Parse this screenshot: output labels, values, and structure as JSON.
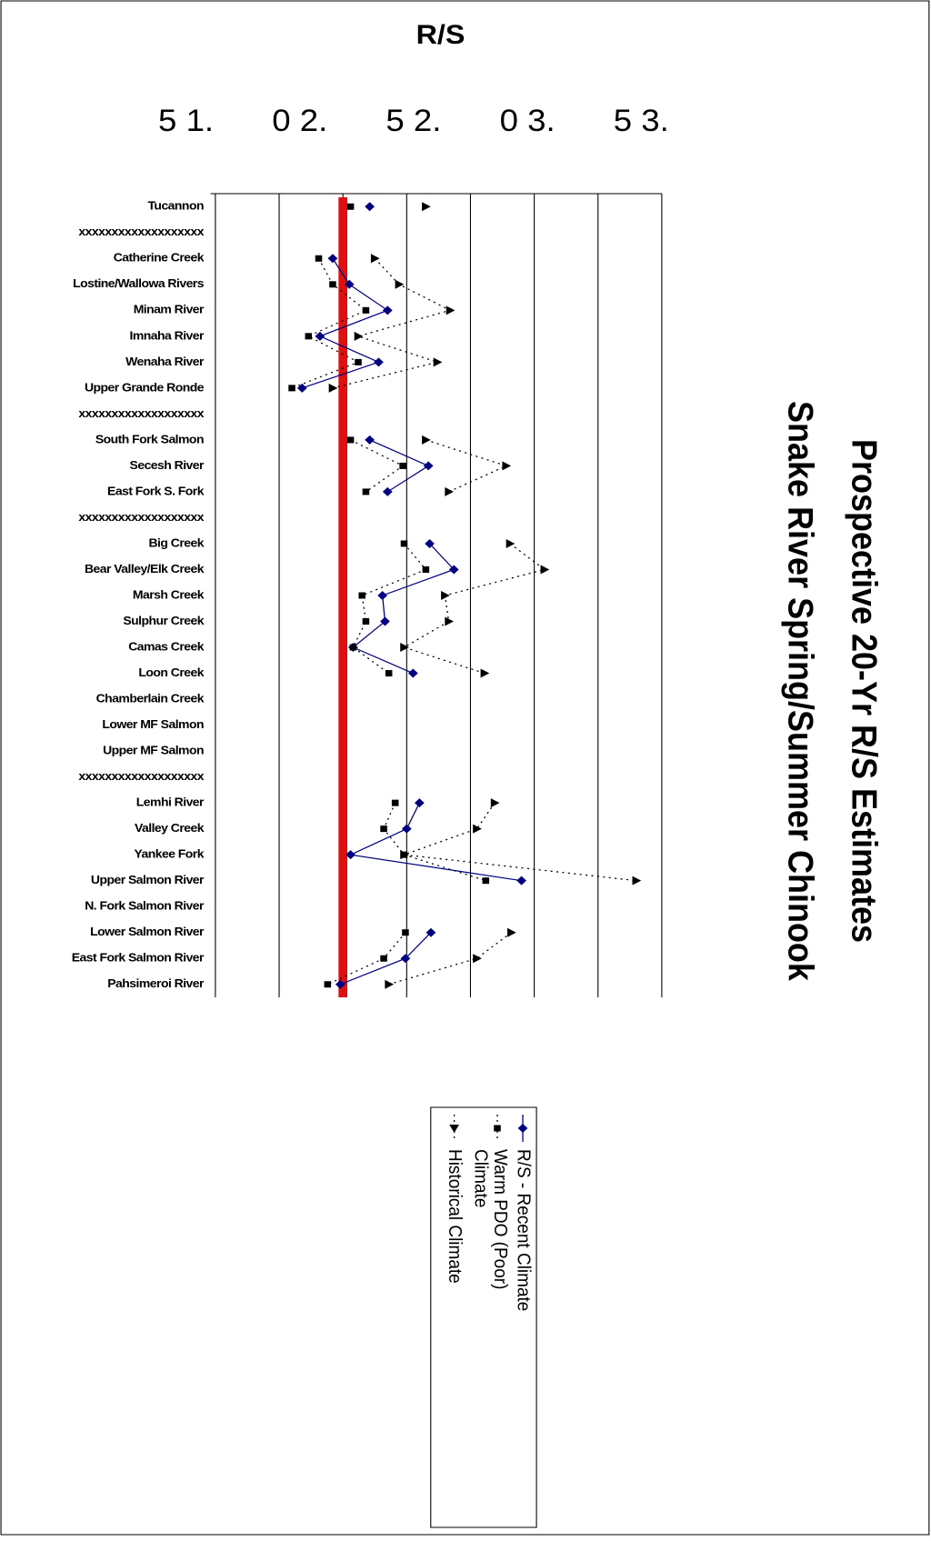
{
  "chart_data": {
    "type": "line",
    "title": "Prospective 20-Yr R/S Estimates",
    "subtitle": "Snake River Spring/Summer Chinook",
    "value_axis_label": "R/S",
    "tick_labels": [
      "5 1.",
      "0 2.",
      "5 2.",
      "0 3.",
      "5 3."
    ],
    "xlim": [
      0,
      3.5
    ],
    "xticks": [
      0.5,
      1,
      1.5,
      2,
      2.5,
      3,
      3.5
    ],
    "grid": true,
    "reference_line": 1,
    "reference_color": "#e01010",
    "categories": [
      "Tucannon",
      "xxxxxxxxxxxxxxxxxxx",
      "Catherine Creek",
      "Lostine/Wallowa Rivers",
      "Minam River",
      "Imnaha  River",
      "Wenaha River",
      "Upper Grande Ronde",
      "xxxxxxxxxxxxxxxxxxx",
      "South Fork Salmon",
      "Secesh River",
      "East Fork S. Fork",
      "xxxxxxxxxxxxxxxxxxx",
      "Big Creek",
      "Bear Valley/Elk Creek",
      "Marsh Creek",
      "Sulphur Creek",
      "Camas Creek",
      "Loon Creek",
      "Chamberlain Creek",
      "Lower MF Salmon",
      "Upper MF Salmon",
      "xxxxxxxxxxxxxxxxxxx",
      "Lemhi River",
      "Valley Creek",
      "Yankee Fork",
      "Upper Salmon River",
      "N. Fork Salmon River",
      "Lower Salmon River",
      "East Fork Salmon River",
      "Pahsimeroi River"
    ],
    "series": [
      {
        "name": "R/S - Recent Climate",
        "color": "#000080",
        "marker": "diamond",
        "style": "solid",
        "values": [
          1.21,
          null,
          0.92,
          1.05,
          1.35,
          0.82,
          1.28,
          0.68,
          null,
          1.21,
          1.67,
          1.35,
          null,
          1.68,
          1.87,
          1.31,
          1.33,
          1.08,
          1.55,
          null,
          null,
          null,
          null,
          1.6,
          1.5,
          1.06,
          2.4,
          null,
          1.69,
          1.49,
          0.98
        ]
      },
      {
        "name": "Warm PDO (Poor) Climate",
        "color": "#000000",
        "marker": "square",
        "style": "dotted",
        "values": [
          1.06,
          null,
          0.81,
          0.92,
          1.18,
          0.73,
          1.12,
          0.6,
          null,
          1.06,
          1.47,
          1.18,
          null,
          1.48,
          1.65,
          1.15,
          1.18,
          1.08,
          1.36,
          null,
          null,
          null,
          null,
          1.41,
          1.32,
          1.48,
          2.12,
          null,
          1.49,
          1.32,
          0.88
        ]
      },
      {
        "name": "Historical Climate",
        "color": "#000000",
        "marker": "triangle",
        "style": "dotted",
        "values": [
          1.65,
          null,
          1.25,
          1.44,
          1.84,
          1.12,
          1.74,
          0.92,
          null,
          1.65,
          2.28,
          1.83,
          null,
          2.31,
          2.58,
          1.8,
          1.83,
          1.48,
          2.11,
          null,
          null,
          null,
          null,
          2.19,
          2.05,
          1.48,
          3.3,
          null,
          2.32,
          2.05,
          1.36
        ]
      }
    ]
  }
}
